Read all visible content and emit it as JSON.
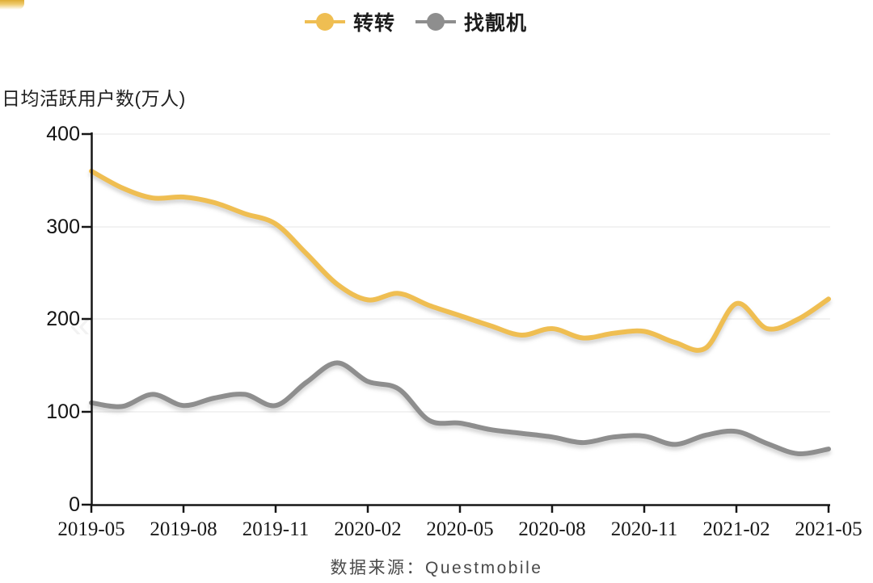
{
  "legend": {
    "items": [
      {
        "label": "转转",
        "color": "#EFBE52"
      },
      {
        "label": "找靓机",
        "color": "#8E8E8E"
      }
    ]
  },
  "watermark": {
    "glyph": "«"
  },
  "chart_data": {
    "type": "line",
    "smooth": true,
    "title": "日均活跃用户数(万人)",
    "xlabel": "",
    "ylabel": "日均活跃用户数(万人)",
    "source": "数据来源：Questmobile",
    "ylim": [
      0,
      400
    ],
    "grid": "horizontal-light",
    "legend_position": "top-center",
    "y_tick_labels": [
      "400",
      "300",
      "200",
      "100",
      "0"
    ],
    "x_tick_labels": [
      "2019-05",
      "2019-08",
      "2019-11",
      "2020-02",
      "2020-05",
      "2020-08",
      "2020-11",
      "2021-02",
      "2021-05"
    ],
    "x": [
      "2019-05",
      "2019-06",
      "2019-07",
      "2019-08",
      "2019-09",
      "2019-10",
      "2019-11",
      "2019-12",
      "2020-01",
      "2020-02",
      "2020-03",
      "2020-04",
      "2020-05",
      "2020-06",
      "2020-07",
      "2020-08",
      "2020-09",
      "2020-10",
      "2020-11",
      "2020-12",
      "2021-01",
      "2021-02",
      "2021-03",
      "2021-04",
      "2021-05"
    ],
    "series": [
      {
        "name": "转转",
        "color": "#EFBE52",
        "values": [
          360,
          342,
          331,
          332,
          326,
          314,
          303,
          271,
          238,
          221,
          228,
          215,
          204,
          193,
          183,
          190,
          180,
          185,
          187,
          175,
          169,
          217,
          190,
          200,
          222
        ]
      },
      {
        "name": "找靓机",
        "color": "#8E8E8E",
        "values": [
          110,
          106,
          119,
          107,
          115,
          119,
          107,
          132,
          153,
          133,
          125,
          91,
          88,
          81,
          77,
          73,
          67,
          73,
          74,
          65,
          75,
          79,
          66,
          55,
          60
        ]
      }
    ]
  }
}
